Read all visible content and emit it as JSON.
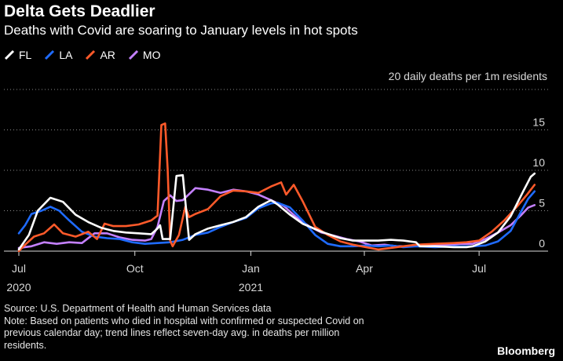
{
  "header": {
    "title": "Delta Gets Deadlier",
    "subtitle": "Deaths with Covid are soaring to January levels in hot spots"
  },
  "legend": {
    "items": [
      {
        "label": "FL",
        "color": "#ffffff"
      },
      {
        "label": "LA",
        "color": "#1f6bff"
      },
      {
        "label": "AR",
        "color": "#ff5a2a"
      },
      {
        "label": "MO",
        "color": "#c480ff"
      }
    ]
  },
  "chart_data": {
    "type": "line",
    "ylabel": "20 daily deaths per 1m residents",
    "ylim": [
      0,
      20
    ],
    "y_ticks": [
      0,
      5,
      10,
      15
    ],
    "xlim": [
      0,
      411
    ],
    "x_ticks": [
      {
        "value": 0,
        "line1": "Jul",
        "line2": "2020"
      },
      {
        "value": 92,
        "line1": "Oct",
        "line2": ""
      },
      {
        "value": 184,
        "line1": "Jan",
        "line2": "2021"
      },
      {
        "value": 274,
        "line1": "Apr",
        "line2": ""
      },
      {
        "value": 365,
        "line1": "Jul",
        "line2": ""
      }
    ],
    "grid": true,
    "series": [
      {
        "name": "FL",
        "color": "#ffffff",
        "points": [
          [
            0,
            0.2
          ],
          [
            8,
            2.0
          ],
          [
            15,
            5.0
          ],
          [
            25,
            6.6
          ],
          [
            35,
            6.1
          ],
          [
            45,
            4.5
          ],
          [
            55,
            3.6
          ],
          [
            65,
            2.9
          ],
          [
            75,
            2.5
          ],
          [
            85,
            2.3
          ],
          [
            95,
            2.2
          ],
          [
            105,
            2.1
          ],
          [
            110,
            2.8
          ],
          [
            112,
            3.2
          ],
          [
            114,
            1.5
          ],
          [
            120,
            1.5
          ],
          [
            125,
            9.3
          ],
          [
            130,
            9.4
          ],
          [
            135,
            1.4
          ],
          [
            140,
            2.1
          ],
          [
            150,
            2.8
          ],
          [
            160,
            3.2
          ],
          [
            170,
            3.6
          ],
          [
            180,
            4.2
          ],
          [
            190,
            5.5
          ],
          [
            200,
            6.3
          ],
          [
            205,
            5.8
          ],
          [
            215,
            4.5
          ],
          [
            225,
            3.4
          ],
          [
            240,
            2.4
          ],
          [
            255,
            1.6
          ],
          [
            265,
            1.3
          ],
          [
            275,
            1.3
          ],
          [
            285,
            1.3
          ],
          [
            295,
            1.4
          ],
          [
            305,
            1.3
          ],
          [
            315,
            1.1
          ],
          [
            318,
            0.6
          ],
          [
            330,
            0.6
          ],
          [
            345,
            0.5
          ],
          [
            355,
            0.5
          ],
          [
            360,
            0.6
          ],
          [
            370,
            1.2
          ],
          [
            380,
            2.3
          ],
          [
            390,
            4.3
          ],
          [
            400,
            7.4
          ],
          [
            406,
            9.2
          ],
          [
            409,
            9.6
          ]
        ]
      },
      {
        "name": "LA",
        "color": "#1f6bff",
        "points": [
          [
            0,
            2.2
          ],
          [
            5,
            3.2
          ],
          [
            10,
            4.6
          ],
          [
            18,
            5.0
          ],
          [
            25,
            5.5
          ],
          [
            32,
            5.0
          ],
          [
            40,
            3.8
          ],
          [
            50,
            2.4
          ],
          [
            60,
            1.8
          ],
          [
            70,
            1.6
          ],
          [
            80,
            1.5
          ],
          [
            90,
            1.1
          ],
          [
            100,
            0.9
          ],
          [
            110,
            1.0
          ],
          [
            120,
            1.1
          ],
          [
            130,
            1.4
          ],
          [
            140,
            2.0
          ],
          [
            150,
            2.3
          ],
          [
            160,
            3.0
          ],
          [
            170,
            3.6
          ],
          [
            180,
            4.1
          ],
          [
            190,
            5.3
          ],
          [
            200,
            5.9
          ],
          [
            205,
            6.0
          ],
          [
            215,
            5.4
          ],
          [
            225,
            3.8
          ],
          [
            235,
            2.0
          ],
          [
            245,
            0.9
          ],
          [
            255,
            0.6
          ],
          [
            265,
            0.6
          ],
          [
            275,
            0.7
          ],
          [
            285,
            0.6
          ],
          [
            295,
            0.7
          ],
          [
            305,
            0.5
          ],
          [
            315,
            0.6
          ],
          [
            330,
            0.5
          ],
          [
            345,
            0.6
          ],
          [
            360,
            0.6
          ],
          [
            370,
            0.7
          ],
          [
            380,
            1.2
          ],
          [
            390,
            2.5
          ],
          [
            398,
            4.8
          ],
          [
            404,
            6.5
          ],
          [
            409,
            7.4
          ]
        ]
      },
      {
        "name": "AR",
        "color": "#ff5a2a",
        "points": [
          [
            0,
            0.0
          ],
          [
            5,
            0.8
          ],
          [
            12,
            1.8
          ],
          [
            20,
            2.2
          ],
          [
            28,
            3.3
          ],
          [
            35,
            2.2
          ],
          [
            45,
            1.8
          ],
          [
            55,
            2.4
          ],
          [
            62,
            1.5
          ],
          [
            68,
            3.4
          ],
          [
            75,
            3.1
          ],
          [
            85,
            3.1
          ],
          [
            95,
            3.3
          ],
          [
            105,
            3.8
          ],
          [
            110,
            4.4
          ],
          [
            113,
            15.6
          ],
          [
            116,
            15.8
          ],
          [
            118,
            10.2
          ],
          [
            120,
            1.3
          ],
          [
            122,
            0.6
          ],
          [
            127,
            2.0
          ],
          [
            132,
            5.5
          ],
          [
            135,
            4.2
          ],
          [
            140,
            4.6
          ],
          [
            150,
            5.2
          ],
          [
            160,
            6.8
          ],
          [
            170,
            7.5
          ],
          [
            180,
            7.4
          ],
          [
            190,
            7.2
          ],
          [
            200,
            8.0
          ],
          [
            208,
            8.5
          ],
          [
            212,
            7.0
          ],
          [
            218,
            8.2
          ],
          [
            225,
            6.2
          ],
          [
            235,
            3.0
          ],
          [
            245,
            2.0
          ],
          [
            255,
            1.2
          ],
          [
            265,
            0.8
          ],
          [
            275,
            0.5
          ],
          [
            285,
            0.2
          ],
          [
            295,
            0.4
          ],
          [
            305,
            0.6
          ],
          [
            315,
            0.8
          ],
          [
            330,
            0.9
          ],
          [
            345,
            1.0
          ],
          [
            355,
            1.1
          ],
          [
            365,
            1.3
          ],
          [
            375,
            2.4
          ],
          [
            385,
            3.8
          ],
          [
            395,
            5.5
          ],
          [
            403,
            7.0
          ],
          [
            409,
            8.2
          ]
        ]
      },
      {
        "name": "MO",
        "color": "#c480ff",
        "points": [
          [
            0,
            0.4
          ],
          [
            10,
            0.6
          ],
          [
            20,
            1.1
          ],
          [
            30,
            0.9
          ],
          [
            40,
            1.1
          ],
          [
            50,
            1.0
          ],
          [
            60,
            2.2
          ],
          [
            70,
            2.2
          ],
          [
            80,
            1.7
          ],
          [
            90,
            1.4
          ],
          [
            100,
            1.3
          ],
          [
            105,
            1.5
          ],
          [
            110,
            3.0
          ],
          [
            115,
            6.2
          ],
          [
            120,
            6.9
          ],
          [
            125,
            6.2
          ],
          [
            130,
            6.3
          ],
          [
            140,
            7.8
          ],
          [
            150,
            7.6
          ],
          [
            160,
            7.2
          ],
          [
            170,
            7.6
          ],
          [
            180,
            7.4
          ],
          [
            190,
            7.0
          ],
          [
            200,
            6.3
          ],
          [
            210,
            5.6
          ],
          [
            220,
            4.2
          ],
          [
            230,
            3.1
          ],
          [
            240,
            2.3
          ],
          [
            250,
            1.9
          ],
          [
            260,
            1.5
          ],
          [
            270,
            1.2
          ],
          [
            280,
            0.7
          ],
          [
            290,
            0.8
          ],
          [
            300,
            0.6
          ],
          [
            310,
            0.6
          ],
          [
            320,
            0.7
          ],
          [
            330,
            0.8
          ],
          [
            340,
            0.8
          ],
          [
            350,
            0.9
          ],
          [
            360,
            0.9
          ],
          [
            370,
            1.5
          ],
          [
            380,
            2.3
          ],
          [
            390,
            3.2
          ],
          [
            398,
            4.4
          ],
          [
            404,
            5.4
          ],
          [
            409,
            5.7
          ]
        ]
      }
    ]
  },
  "footer": {
    "source": "Source: U.S. Department of Health and Human Services data",
    "note_line1": "Note: Based on patients who died in hospital with confirmed or suspected Covid on",
    "note_line2": "previous calendar day; trend lines reflect seven-day avg. in deaths per million",
    "note_line3": "residents.",
    "brand": "Bloomberg"
  }
}
